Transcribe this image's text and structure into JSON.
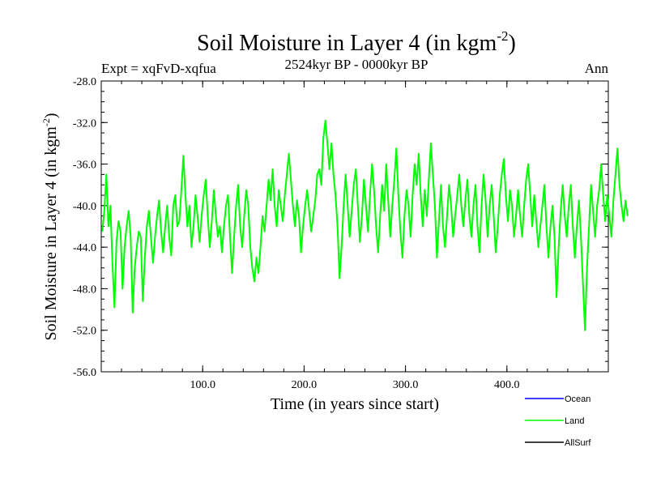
{
  "chart_data": {
    "type": "line",
    "title": "Soil Moisture in Layer 4 (in kgm",
    "title_sup": "-2",
    "title_close": ")",
    "subtitle": "2524kyr BP - 0000kyr BP",
    "experiment": "Expt = xqFvD-xqfua",
    "season": "Ann",
    "xlabel": "Time (in years since start)",
    "ylabel": "Soil Moisture in Layer 4 (in kgm",
    "ylabel_sup": "-2",
    "ylabel_close": ")",
    "xlim": [
      0,
      500
    ],
    "ylim": [
      -56.0,
      -28.0
    ],
    "xticks": [
      100,
      200,
      300,
      400
    ],
    "xtick_labels": [
      "100.0",
      "200.0",
      "300.0",
      "400.0"
    ],
    "yticks": [
      -28,
      -32,
      -36,
      -40,
      -44,
      -48,
      -52,
      -56
    ],
    "ytick_labels": [
      "-28.0",
      "-32.0",
      "-36.0",
      "-40.0",
      "-44.0",
      "-48.0",
      "-52.0",
      "-56.0"
    ],
    "legend": [
      {
        "name": "Ocean",
        "color": "#0000ff"
      },
      {
        "name": "Land",
        "color": "#00ff00"
      },
      {
        "name": "AllSurf",
        "color": "#000000"
      }
    ],
    "series": [
      {
        "name": "Land",
        "color": "#00ff00",
        "x_start": 1,
        "x_step": 2,
        "values": [
          -42.5,
          -40.5,
          -37.0,
          -42.0,
          -40.0,
          -45.5,
          -49.8,
          -43.5,
          -41.5,
          -42.5,
          -48.0,
          -44.0,
          -42.0,
          -40.5,
          -43.0,
          -50.3,
          -46.0,
          -44.0,
          -42.5,
          -43.0,
          -49.2,
          -45.0,
          -42.0,
          -40.5,
          -43.0,
          -45.5,
          -43.0,
          -41.0,
          -39.5,
          -42.5,
          -44.5,
          -42.0,
          -40.0,
          -43.0,
          -44.8,
          -40.0,
          -39.0,
          -42.0,
          -41.5,
          -38.5,
          -35.2,
          -39.0,
          -42.0,
          -40.0,
          -44.0,
          -42.0,
          -39.0,
          -41.0,
          -43.5,
          -41.0,
          -39.0,
          -37.5,
          -41.0,
          -44.0,
          -41.5,
          -38.5,
          -41.0,
          -43.0,
          -42.0,
          -44.5,
          -42.0,
          -40.0,
          -39.0,
          -43.0,
          -46.5,
          -43.0,
          -40.0,
          -38.0,
          -42.0,
          -44.0,
          -41.0,
          -38.5,
          -40.0,
          -44.0,
          -46.0,
          -47.3,
          -45.0,
          -46.5,
          -44.0,
          -41.0,
          -42.5,
          -40.0,
          -37.5,
          -39.5,
          -36.5,
          -40.0,
          -42.0,
          -38.5,
          -40.0,
          -41.5,
          -39.0,
          -37.0,
          -35.0,
          -37.5,
          -40.0,
          -42.0,
          -39.5,
          -41.0,
          -44.5,
          -42.0,
          -40.0,
          -38.5,
          -40.5,
          -42.5,
          -41.0,
          -39.5,
          -37.0,
          -36.5,
          -38.0,
          -33.5,
          -31.8,
          -34.0,
          -36.5,
          -34.0,
          -37.0,
          -39.0,
          -42.0,
          -47.0,
          -44.0,
          -40.0,
          -37.0,
          -40.0,
          -43.0,
          -40.5,
          -38.0,
          -36.5,
          -40.0,
          -43.5,
          -41.0,
          -37.5,
          -40.0,
          -42.5,
          -39.0,
          -36.0,
          -38.5,
          -42.0,
          -44.5,
          -41.0,
          -38.0,
          -40.5,
          -36.0,
          -39.5,
          -43.0,
          -40.0,
          -37.5,
          -34.5,
          -39.0,
          -42.5,
          -45.0,
          -41.0,
          -38.5,
          -40.0,
          -43.0,
          -39.0,
          -36.0,
          -38.0,
          -35.0,
          -39.0,
          -42.0,
          -38.5,
          -41.0,
          -37.5,
          -34.0,
          -37.0,
          -40.0,
          -45.0,
          -41.5,
          -38.0,
          -42.0,
          -44.0,
          -41.0,
          -38.0,
          -40.0,
          -43.0,
          -41.0,
          -39.0,
          -37.0,
          -40.0,
          -42.0,
          -39.5,
          -37.5,
          -41.0,
          -43.0,
          -40.0,
          -38.0,
          -42.0,
          -44.5,
          -40.0,
          -37.0,
          -39.5,
          -43.0,
          -40.0,
          -38.0,
          -41.0,
          -44.5,
          -42.0,
          -39.0,
          -37.0,
          -35.5,
          -39.0,
          -41.5,
          -38.5,
          -40.0,
          -43.0,
          -41.0,
          -38.5,
          -41.0,
          -43.0,
          -40.0,
          -37.5,
          -36.0,
          -39.0,
          -42.0,
          -39.0,
          -41.5,
          -44.0,
          -42.0,
          -40.0,
          -38.0,
          -42.0,
          -45.0,
          -42.0,
          -40.0,
          -43.0,
          -48.8,
          -44.0,
          -40.5,
          -38.0,
          -41.0,
          -43.0,
          -40.0,
          -38.0,
          -42.0,
          -45.0,
          -42.0,
          -39.5,
          -43.0,
          -47.5,
          -52.0,
          -46.0,
          -42.0,
          -38.0,
          -40.5,
          -43.0,
          -40.0,
          -38.5,
          -36.0,
          -39.0,
          -41.5,
          -39.0,
          -41.0,
          -43.0,
          -39.5,
          -37.0,
          -34.5,
          -38.0,
          -40.0,
          -41.5,
          -39.5,
          -41.0
        ]
      }
    ]
  }
}
